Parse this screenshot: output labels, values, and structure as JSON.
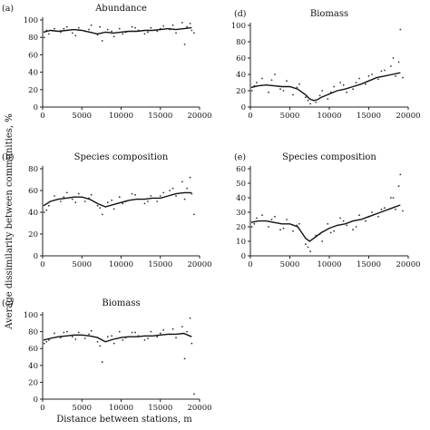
{
  "figure": {
    "ylabel": "Average dissimilarity between communities, %",
    "xlabel": "Distance between stations, m"
  },
  "chart_data": [
    {
      "panel": "(a)",
      "title": "Abundance",
      "type": "scatter",
      "xlim": [
        0,
        20000
      ],
      "ylim": [
        0,
        100
      ],
      "xticks": [
        0,
        5000,
        10000,
        15000,
        20000
      ],
      "yticks": [
        0,
        20,
        40,
        60,
        80,
        100
      ],
      "trend": {
        "x": [
          100,
          1000,
          2000,
          3000,
          4000,
          5000,
          6000,
          7000,
          8000,
          9000,
          10000,
          11000,
          12000,
          13000,
          14000,
          15000,
          16000,
          17000,
          18000,
          19000
        ],
        "y": [
          86,
          88,
          87,
          88,
          89,
          88,
          86,
          84,
          86,
          85,
          86,
          87,
          87,
          88,
          88,
          89,
          90,
          89,
          90,
          91
        ]
      },
      "scatter": {
        "x": [
          200,
          800,
          1500,
          2300,
          3100,
          3800,
          4600,
          5400,
          6200,
          7000,
          7600,
          8300,
          9100,
          9800,
          10600,
          11400,
          12200,
          13000,
          13800,
          14600,
          15400,
          16200,
          17000,
          17800,
          18400,
          19000,
          500,
          2700,
          4200,
          5900,
          7300,
          8800,
          10200,
          11800,
          13400,
          15000,
          16600,
          18100,
          18800,
          19300
        ],
        "y": [
          80,
          84,
          90,
          86,
          92,
          85,
          91,
          87,
          94,
          83,
          76,
          89,
          81,
          90,
          86,
          92,
          88,
          84,
          91,
          87,
          93,
          89,
          85,
          97,
          92,
          88,
          88,
          90,
          82,
          89,
          92,
          87,
          84,
          91,
          86,
          90,
          94,
          72,
          96,
          85
        ]
      }
    },
    {
      "panel": "(b)",
      "title": "Species composition",
      "type": "scatter",
      "xlim": [
        0,
        20000
      ],
      "ylim": [
        0,
        80
      ],
      "xticks": [
        0,
        5000,
        10000,
        15000,
        20000
      ],
      "yticks": [
        0,
        20,
        40,
        60,
        80
      ],
      "trend": {
        "x": [
          100,
          1000,
          2000,
          3000,
          4000,
          5000,
          6000,
          7000,
          8000,
          9000,
          10000,
          11000,
          12000,
          13000,
          14000,
          15000,
          16000,
          17000,
          18000,
          19000
        ],
        "y": [
          46,
          50,
          52,
          53,
          54,
          54,
          52,
          48,
          45,
          47,
          49,
          51,
          52,
          52,
          53,
          53,
          55,
          57,
          58,
          58
        ]
      },
      "scatter": {
        "x": [
          200,
          800,
          1500,
          2300,
          3100,
          3800,
          4600,
          5400,
          6200,
          7000,
          7600,
          8300,
          9100,
          9800,
          10600,
          11400,
          12200,
          13000,
          13800,
          14600,
          15400,
          16200,
          17000,
          17800,
          18400,
          19000,
          500,
          2700,
          4200,
          5900,
          7300,
          8800,
          10200,
          11800,
          13400,
          15000,
          16600,
          18100,
          18800,
          19300
        ],
        "y": [
          40,
          46,
          55,
          50,
          58,
          52,
          57,
          50,
          56,
          46,
          38,
          49,
          43,
          54,
          50,
          57,
          52,
          48,
          55,
          50,
          58,
          60,
          55,
          68,
          62,
          57,
          42,
          54,
          49,
          53,
          44,
          51,
          48,
          56,
          50,
          55,
          62,
          52,
          72,
          38
        ]
      }
    },
    {
      "panel": "(c)",
      "title": "Biomass",
      "type": "scatter",
      "xlim": [
        0,
        20000
      ],
      "ylim": [
        0,
        100
      ],
      "xticks": [
        0,
        5000,
        10000,
        15000,
        20000
      ],
      "yticks": [
        0,
        20,
        40,
        60,
        80,
        100
      ],
      "trend": {
        "x": [
          100,
          1000,
          2000,
          3000,
          4000,
          5000,
          6000,
          7000,
          8000,
          9000,
          10000,
          11000,
          12000,
          13000,
          14000,
          15000,
          16000,
          17000,
          18000,
          19000
        ],
        "y": [
          70,
          72,
          74,
          75,
          76,
          76,
          75,
          73,
          68,
          71,
          73,
          74,
          74,
          75,
          75,
          76,
          77,
          77,
          78,
          74
        ]
      },
      "scatter": {
        "x": [
          200,
          800,
          1500,
          2300,
          3100,
          3800,
          4600,
          5400,
          6200,
          7000,
          7600,
          8300,
          9100,
          9800,
          10600,
          11400,
          12200,
          13000,
          13800,
          14600,
          15400,
          16200,
          17000,
          17800,
          18400,
          19000,
          500,
          2700,
          4200,
          5900,
          7300,
          8800,
          10200,
          11800,
          13400,
          15000,
          16600,
          18100,
          18800,
          19300
        ],
        "y": [
          66,
          70,
          78,
          73,
          80,
          74,
          79,
          72,
          81,
          68,
          44,
          74,
          66,
          80,
          73,
          79,
          75,
          70,
          80,
          74,
          82,
          77,
          73,
          86,
          80,
          66,
          68,
          79,
          71,
          77,
          63,
          75,
          70,
          79,
          72,
          78,
          83,
          48,
          96,
          6
        ]
      }
    },
    {
      "panel": "(d)",
      "title": "Biomass",
      "type": "scatter",
      "xlim": [
        0,
        20000
      ],
      "ylim": [
        0,
        100
      ],
      "xticks": [
        0,
        5000,
        10000,
        15000,
        20000
      ],
      "yticks": [
        0,
        20,
        40,
        60,
        80,
        100
      ],
      "trend": {
        "x": [
          100,
          1000,
          2000,
          3000,
          4000,
          5000,
          6000,
          7000,
          7500,
          8000,
          8500,
          9000,
          10000,
          11000,
          12000,
          13000,
          14000,
          15000,
          16000,
          17000,
          18000,
          19000
        ],
        "y": [
          24,
          26,
          27,
          26,
          25,
          25,
          22,
          15,
          10,
          8,
          9,
          12,
          16,
          20,
          22,
          25,
          28,
          32,
          36,
          38,
          40,
          42
        ]
      },
      "scatter": {
        "x": [
          200,
          800,
          1500,
          2300,
          3100,
          3800,
          4600,
          5400,
          6200,
          7000,
          7600,
          8300,
          9100,
          9800,
          10600,
          11400,
          12200,
          13000,
          13800,
          14600,
          15400,
          16200,
          17000,
          17800,
          18400,
          19000,
          500,
          2700,
          4200,
          5900,
          7300,
          8800,
          10200,
          11800,
          13400,
          15000,
          16600,
          18100,
          18800,
          19300
        ],
        "y": [
          20,
          30,
          35,
          18,
          40,
          22,
          32,
          15,
          28,
          12,
          4,
          6,
          20,
          10,
          25,
          30,
          18,
          22,
          35,
          28,
          40,
          34,
          45,
          50,
          38,
          95,
          26,
          33,
          20,
          24,
          8,
          14,
          18,
          27,
          30,
          38,
          44,
          60,
          55,
          36
        ]
      }
    },
    {
      "panel": "(e)",
      "title": "Species composition",
      "type": "scatter",
      "xlim": [
        0,
        20000
      ],
      "ylim": [
        0,
        60
      ],
      "xticks": [
        0,
        5000,
        10000,
        15000,
        20000
      ],
      "yticks": [
        0,
        10,
        20,
        30,
        40,
        50,
        60
      ],
      "trend": {
        "x": [
          100,
          1000,
          2000,
          3000,
          4000,
          5000,
          6000,
          6500,
          7000,
          7500,
          8000,
          9000,
          10000,
          11000,
          12000,
          13000,
          14000,
          15000,
          16000,
          17000,
          18000,
          19000
        ],
        "y": [
          23,
          24,
          24,
          23,
          22,
          22,
          20,
          16,
          12,
          10,
          12,
          16,
          19,
          21,
          22,
          24,
          25,
          27,
          29,
          31,
          33,
          35
        ]
      },
      "scatter": {
        "x": [
          200,
          800,
          1500,
          2300,
          3100,
          3800,
          4600,
          5400,
          6200,
          7000,
          7600,
          8300,
          9100,
          9800,
          10600,
          11400,
          12200,
          13000,
          13800,
          14600,
          15400,
          16200,
          17000,
          17800,
          18400,
          19000,
          500,
          2700,
          4200,
          5900,
          7300,
          8800,
          10200,
          11800,
          13400,
          15000,
          16600,
          18100,
          18800,
          19300
        ],
        "y": [
          20,
          26,
          28,
          20,
          27,
          18,
          25,
          17,
          22,
          8,
          3,
          14,
          10,
          22,
          17,
          26,
          21,
          18,
          28,
          24,
          30,
          27,
          33,
          40,
          32,
          56,
          22,
          25,
          19,
          21,
          6,
          15,
          16,
          24,
          20,
          27,
          32,
          40,
          48,
          31
        ]
      }
    }
  ]
}
